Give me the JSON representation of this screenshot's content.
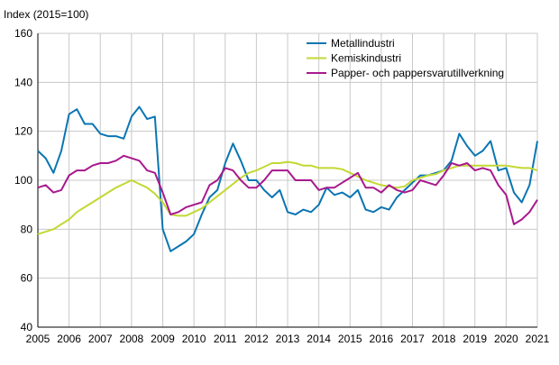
{
  "chart_data": {
    "type": "line",
    "title": "",
    "ylabel": "Index (2015=100)",
    "xlabel": "",
    "ylim": [
      40,
      160
    ],
    "yticks": [
      40,
      60,
      80,
      100,
      120,
      140,
      160
    ],
    "xlim": [
      2005,
      2021
    ],
    "xticks": [
      "2005",
      "2006",
      "2007",
      "2008",
      "2009",
      "2010",
      "2011",
      "2012",
      "2013",
      "2014",
      "2015",
      "2016",
      "2017",
      "2018",
      "2019",
      "2020",
      "2021"
    ],
    "grid": true,
    "legend": "top-right",
    "x": [
      2005,
      2005.25,
      2005.5,
      2005.75,
      2006,
      2006.25,
      2006.5,
      2006.75,
      2007,
      2007.25,
      2007.5,
      2007.75,
      2008,
      2008.25,
      2008.5,
      2008.75,
      2009,
      2009.25,
      2009.5,
      2009.75,
      2010,
      2010.25,
      2010.5,
      2010.75,
      2011,
      2011.25,
      2011.5,
      2011.75,
      2012,
      2012.25,
      2012.5,
      2012.75,
      2013,
      2013.25,
      2013.5,
      2013.75,
      2014,
      2014.25,
      2014.5,
      2014.75,
      2015,
      2015.25,
      2015.5,
      2015.75,
      2016,
      2016.25,
      2016.5,
      2016.75,
      2017,
      2017.25,
      2017.5,
      2017.75,
      2018,
      2018.25,
      2018.5,
      2018.75,
      2019,
      2019.25,
      2019.5,
      2019.75,
      2020,
      2020.25,
      2020.5,
      2020.75,
      2021
    ],
    "series": [
      {
        "name": "Metallindustri",
        "color": "#0a75b3",
        "values": [
          112,
          109,
          103,
          112,
          127,
          129,
          123,
          123,
          119,
          118,
          118,
          117,
          126,
          130,
          125,
          126,
          80,
          71,
          73,
          75,
          78,
          86,
          93,
          96,
          107,
          115,
          108,
          100,
          100,
          96,
          93,
          96,
          87,
          86,
          88,
          87,
          90,
          97,
          94,
          95,
          93,
          96,
          88,
          87,
          89,
          88,
          93,
          96,
          99,
          102,
          102,
          103,
          104,
          108,
          119,
          114,
          110,
          112,
          116,
          104,
          105,
          95,
          91,
          98,
          116
        ]
      },
      {
        "name": "Kemiskindustri",
        "color": "#c3d833",
        "values": [
          78,
          79,
          80,
          82,
          84,
          87,
          89,
          91,
          93,
          95,
          97,
          98.5,
          100,
          98.5,
          97,
          94.5,
          91,
          86,
          85.5,
          85.5,
          87,
          88.5,
          91,
          93.5,
          96,
          98.5,
          101,
          103,
          104,
          105.5,
          107,
          107,
          107.5,
          107,
          106,
          106,
          105,
          105,
          105,
          104.5,
          103,
          101.5,
          100,
          99,
          98,
          97.5,
          97,
          97.5,
          100,
          101,
          102,
          102.5,
          104,
          105,
          106,
          106,
          106,
          106,
          106,
          106,
          106,
          105.5,
          105,
          105,
          104
        ]
      },
      {
        "name": "Papper- och pappersvarutillverkning",
        "color": "#a8198d",
        "values": [
          97,
          98,
          95,
          96,
          102,
          104,
          104,
          106,
          107,
          107,
          108,
          110,
          109,
          108,
          104,
          103,
          95,
          86,
          87,
          89,
          90,
          91,
          98,
          100,
          105,
          104,
          100,
          97,
          97,
          100,
          104,
          104,
          104,
          100,
          100,
          100,
          96,
          97,
          97,
          99,
          101,
          103,
          97,
          97,
          95,
          98,
          96,
          95,
          96,
          100,
          99,
          98,
          102,
          107,
          106,
          107,
          104,
          105,
          104,
          98,
          94,
          82,
          84,
          87,
          92
        ]
      }
    ]
  }
}
